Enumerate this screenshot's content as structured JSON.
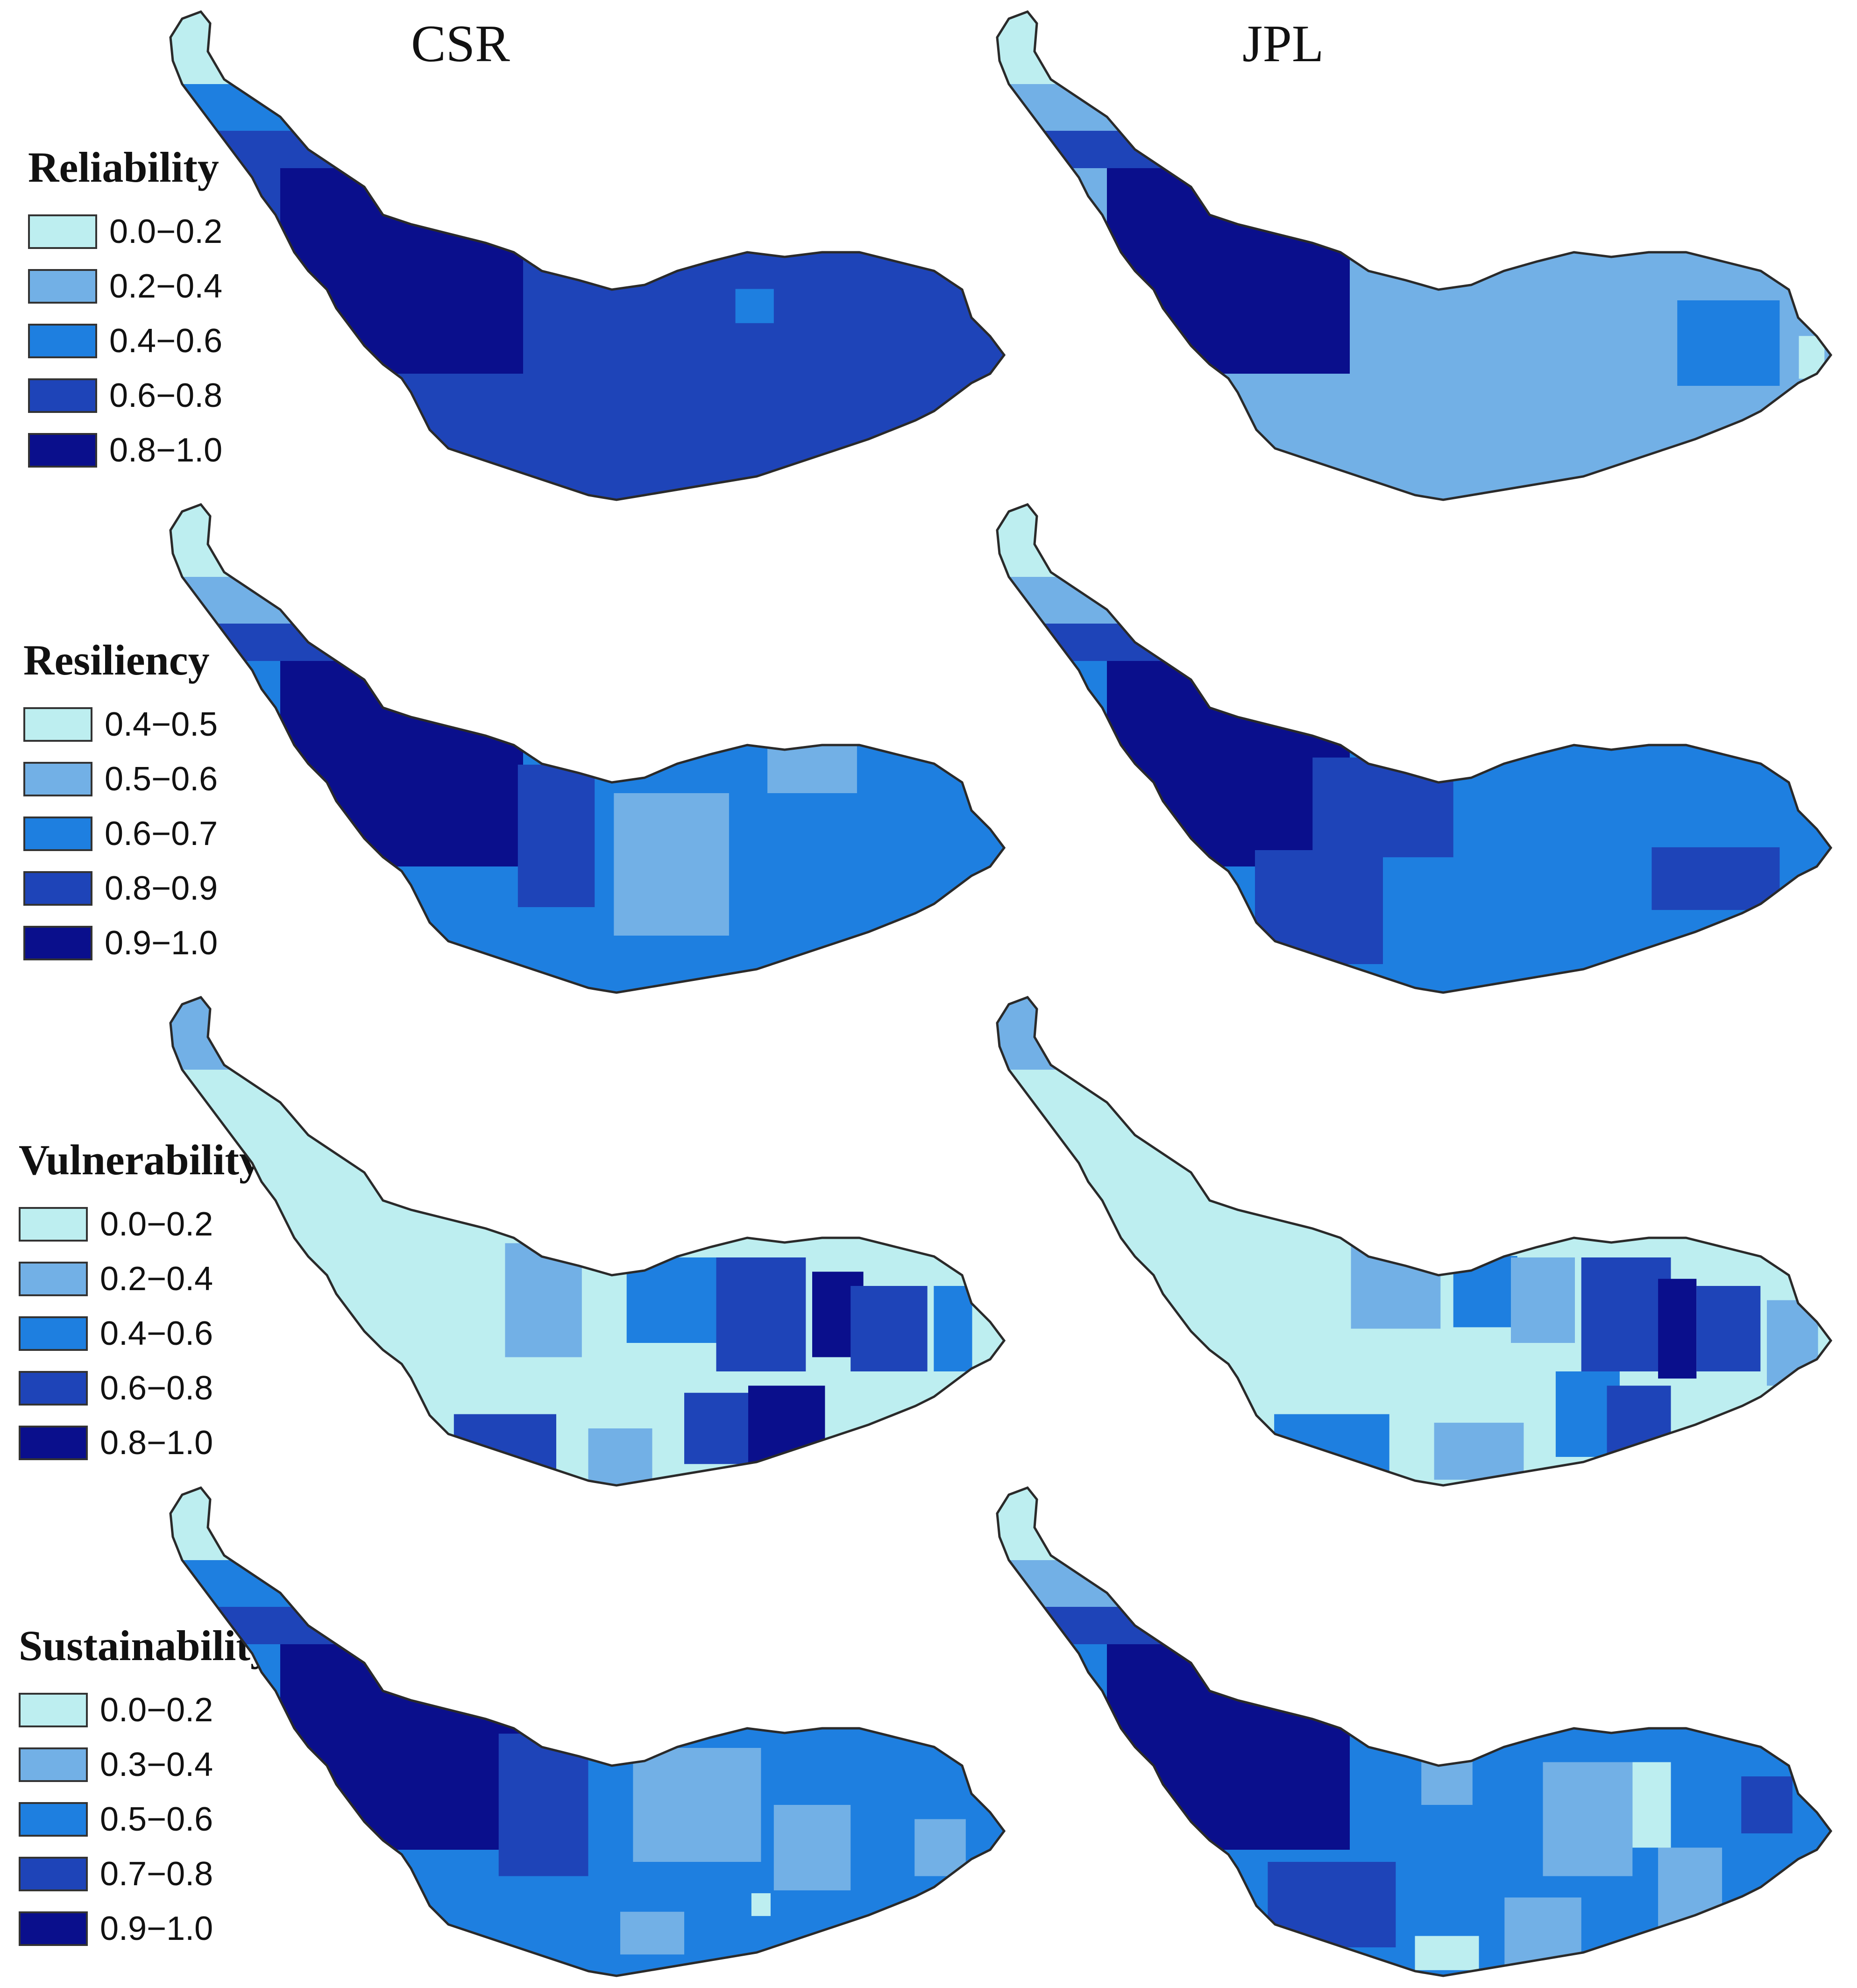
{
  "columns": [
    "CSR",
    "JPL"
  ],
  "colors": {
    "c1": "#bdeef0",
    "c2": "#72b0e6",
    "c3": "#1e7fe0",
    "c4": "#1e44b8",
    "c5": "#0a0f8c"
  },
  "panels": [
    {
      "title": "Reliability",
      "legend": [
        "0.0−0.2",
        "0.2−0.4",
        "0.4−0.6",
        "0.6−0.8",
        "0.8−1.0"
      ],
      "csr": {
        "tail": [
          0,
          2,
          3
        ],
        "west": 4,
        "main": 3,
        "patches": [],
        "extra": [
          {
            "u": 0.61,
            "v": 0.32,
            "c": 2,
            "w": 0.06,
            "h": 0.12
          }
        ]
      },
      "jpl": {
        "tail": [
          0,
          1,
          2,
          3
        ],
        "west": 4,
        "main": 1,
        "patches": [
          {
            "u": 0.84,
            "v": 0.45,
            "c": 2,
            "w": 0.16,
            "h": 0.3
          },
          {
            "u": 0.97,
            "v": 0.5,
            "c": 0,
            "w": 0.04,
            "h": 0.15
          }
        ],
        "extra": []
      }
    },
    {
      "title": "Resiliency",
      "legend": [
        "0.4−0.5",
        "0.5−0.6",
        "0.6−0.7",
        "0.8−0.9",
        "0.9−1.0"
      ],
      "csr": {
        "tail": [
          0,
          1,
          3
        ],
        "west": 4,
        "main": 2,
        "patches": [
          {
            "u": 0.3,
            "v": 0.45,
            "c": 3,
            "w": 0.12,
            "h": 0.5
          },
          {
            "u": 0.48,
            "v": 0.55,
            "c": 1,
            "w": 0.18,
            "h": 0.5
          },
          {
            "u": 0.75,
            "v": 0.4,
            "c": 2,
            "w": 0.12,
            "h": 0.4
          },
          {
            "u": 0.7,
            "v": 0.2,
            "c": 1,
            "w": 0.14,
            "h": 0.2
          }
        ],
        "extra": []
      },
      "jpl": {
        "tail": [
          0,
          1,
          3
        ],
        "west": 4,
        "main": 2,
        "patches": [
          {
            "u": 0.3,
            "v": 0.35,
            "c": 3,
            "w": 0.22,
            "h": 0.35
          },
          {
            "u": 0.2,
            "v": 0.7,
            "c": 3,
            "w": 0.2,
            "h": 0.4
          },
          {
            "u": 0.82,
            "v": 0.6,
            "c": 3,
            "w": 0.2,
            "h": 0.22
          }
        ],
        "extra": []
      }
    },
    {
      "title": "Vulnerability",
      "legend": [
        "0.0−0.2",
        "0.2−0.4",
        "0.4−0.6",
        "0.6−0.8",
        "0.8−1.0"
      ],
      "csr": {
        "tail": [
          1,
          0,
          0
        ],
        "west": 0,
        "main": 0,
        "patches": [
          {
            "u": 0.28,
            "v": 0.35,
            "c": 1,
            "w": 0.12,
            "h": 0.4
          },
          {
            "u": 0.48,
            "v": 0.35,
            "c": 2,
            "w": 0.14,
            "h": 0.3
          },
          {
            "u": 0.62,
            "v": 0.4,
            "c": 3,
            "w": 0.14,
            "h": 0.4
          },
          {
            "u": 0.74,
            "v": 0.4,
            "c": 4,
            "w": 0.08,
            "h": 0.3
          },
          {
            "u": 0.82,
            "v": 0.45,
            "c": 3,
            "w": 0.12,
            "h": 0.3
          },
          {
            "u": 0.66,
            "v": 0.8,
            "c": 4,
            "w": 0.12,
            "h": 0.3
          },
          {
            "u": 0.55,
            "v": 0.8,
            "c": 3,
            "w": 0.1,
            "h": 0.25
          },
          {
            "u": 0.22,
            "v": 0.85,
            "c": 3,
            "w": 0.16,
            "h": 0.2
          },
          {
            "u": 0.4,
            "v": 0.9,
            "c": 1,
            "w": 0.1,
            "h": 0.2
          },
          {
            "u": 0.92,
            "v": 0.45,
            "c": 2,
            "w": 0.06,
            "h": 0.3
          }
        ],
        "extra": []
      },
      "jpl": {
        "tail": [
          1,
          0,
          0
        ],
        "west": 0,
        "main": 0,
        "patches": [
          {
            "u": 0.32,
            "v": 0.3,
            "c": 1,
            "w": 0.14,
            "h": 0.3
          },
          {
            "u": 0.46,
            "v": 0.32,
            "c": 2,
            "w": 0.1,
            "h": 0.25
          },
          {
            "u": 0.55,
            "v": 0.35,
            "c": 1,
            "w": 0.1,
            "h": 0.3
          },
          {
            "u": 0.68,
            "v": 0.4,
            "c": 3,
            "w": 0.14,
            "h": 0.4
          },
          {
            "u": 0.76,
            "v": 0.45,
            "c": 4,
            "w": 0.06,
            "h": 0.35
          },
          {
            "u": 0.84,
            "v": 0.45,
            "c": 3,
            "w": 0.1,
            "h": 0.3
          },
          {
            "u": 0.62,
            "v": 0.75,
            "c": 2,
            "w": 0.1,
            "h": 0.3
          },
          {
            "u": 0.7,
            "v": 0.8,
            "c": 3,
            "w": 0.1,
            "h": 0.3
          },
          {
            "u": 0.22,
            "v": 0.85,
            "c": 2,
            "w": 0.18,
            "h": 0.2
          },
          {
            "u": 0.45,
            "v": 0.88,
            "c": 1,
            "w": 0.14,
            "h": 0.2
          },
          {
            "u": 0.94,
            "v": 0.5,
            "c": 1,
            "w": 0.08,
            "h": 0.3
          }
        ],
        "extra": []
      }
    },
    {
      "title": "Sustainability",
      "legend": [
        "0.0−0.2",
        "0.3−0.4",
        "0.5−0.6",
        "0.7−0.8",
        "0.9−1.0"
      ],
      "csr": {
        "tail": [
          0,
          2,
          3
        ],
        "west": 4,
        "main": 2,
        "patches": [
          {
            "u": 0.28,
            "v": 0.4,
            "c": 3,
            "w": 0.14,
            "h": 0.5
          },
          {
            "u": 0.52,
            "v": 0.4,
            "c": 1,
            "w": 0.2,
            "h": 0.4
          },
          {
            "u": 0.7,
            "v": 0.55,
            "c": 1,
            "w": 0.12,
            "h": 0.3
          },
          {
            "u": 0.9,
            "v": 0.55,
            "c": 1,
            "w": 0.08,
            "h": 0.2
          },
          {
            "u": 0.45,
            "v": 0.85,
            "c": 1,
            "w": 0.1,
            "h": 0.15
          },
          {
            "u": 0.62,
            "v": 0.75,
            "c": 0,
            "w": 0.03,
            "h": 0.08
          }
        ],
        "extra": []
      },
      "jpl": {
        "tail": [
          0,
          1,
          3
        ],
        "west": 4,
        "main": 2,
        "patches": [
          {
            "u": 0.22,
            "v": 0.75,
            "c": 3,
            "w": 0.2,
            "h": 0.3
          },
          {
            "u": 0.4,
            "v": 0.3,
            "c": 1,
            "w": 0.08,
            "h": 0.2
          },
          {
            "u": 0.62,
            "v": 0.45,
            "c": 1,
            "w": 0.14,
            "h": 0.4
          },
          {
            "u": 0.72,
            "v": 0.4,
            "c": 0,
            "w": 0.06,
            "h": 0.3
          },
          {
            "u": 0.78,
            "v": 0.7,
            "c": 1,
            "w": 0.1,
            "h": 0.3
          },
          {
            "u": 0.9,
            "v": 0.4,
            "c": 3,
            "w": 0.08,
            "h": 0.2
          },
          {
            "u": 0.55,
            "v": 0.85,
            "c": 1,
            "w": 0.12,
            "h": 0.25
          },
          {
            "u": 0.4,
            "v": 0.92,
            "c": 0,
            "w": 0.1,
            "h": 0.12
          }
        ],
        "extra": []
      }
    }
  ]
}
